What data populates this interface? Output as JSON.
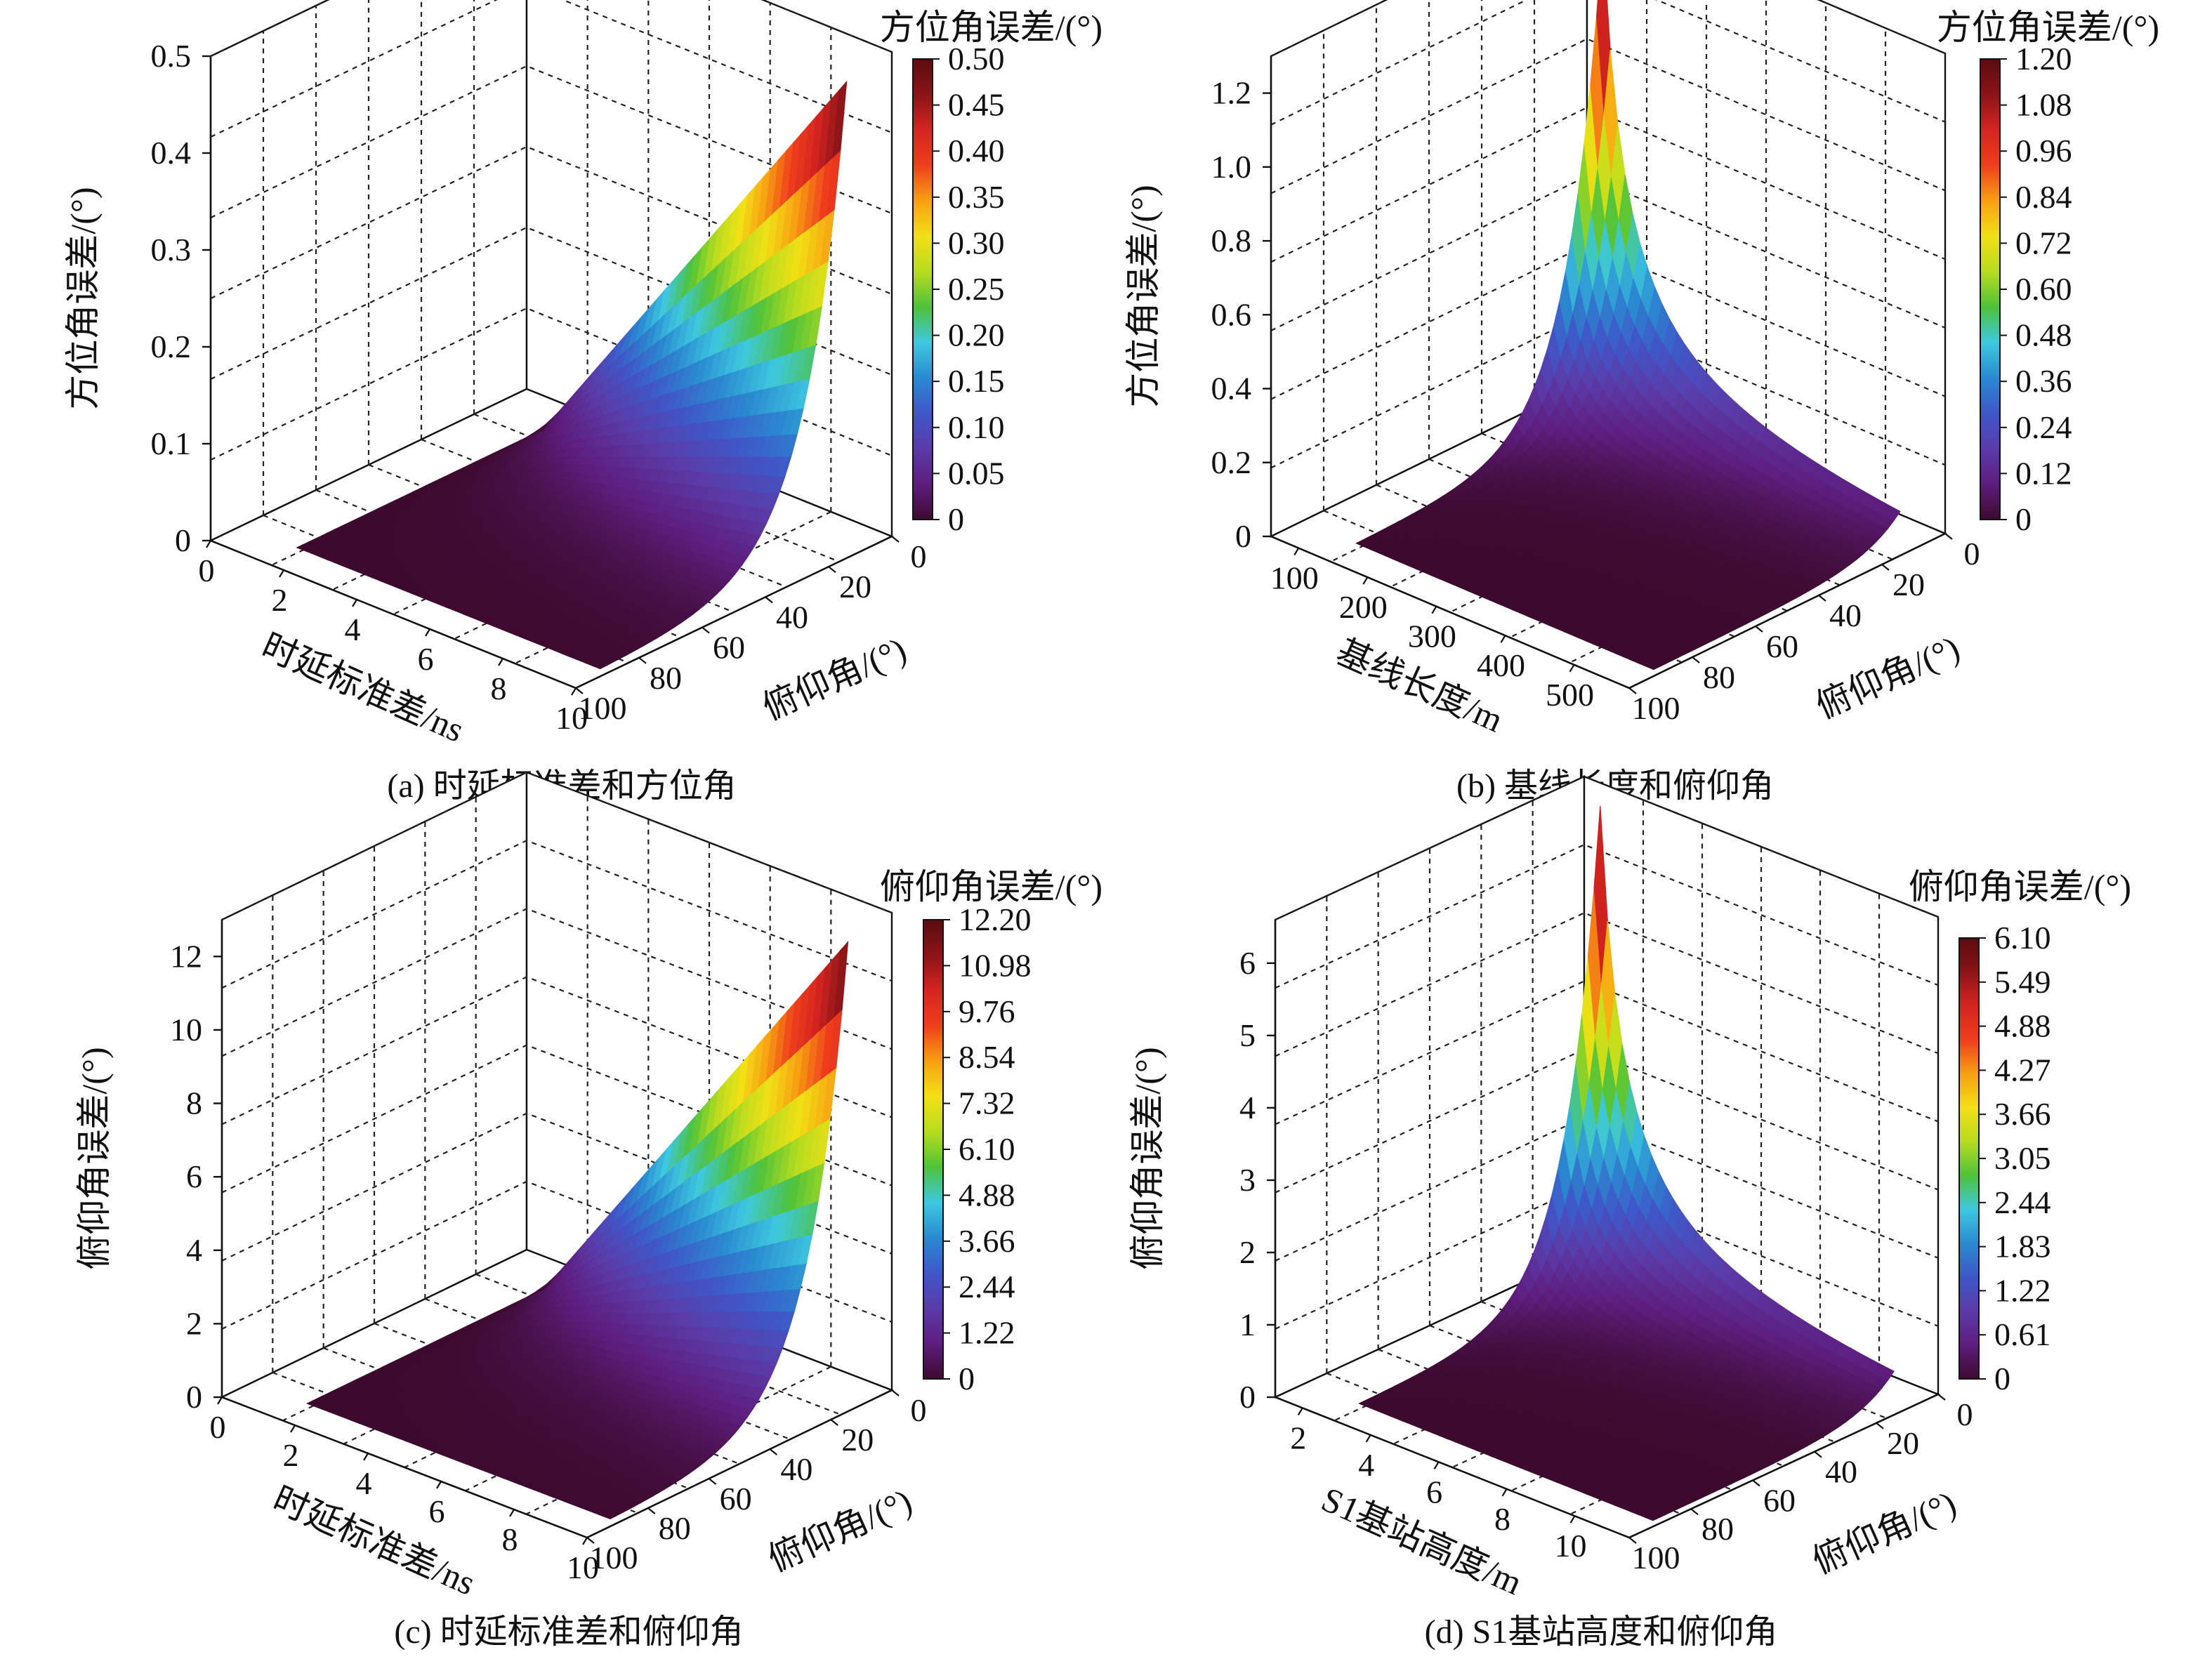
{
  "colorbar_colors": [
    "#3d0a2e",
    "#5e1d7e",
    "#5b3ba8",
    "#3f57c8",
    "#2a8ad0",
    "#3ec8e0",
    "#4ec23a",
    "#b8dc1e",
    "#f2e016",
    "#f7a012",
    "#ef3e1c",
    "#d62420",
    "#8a1418",
    "#5a0c10"
  ],
  "chart_data": [
    {
      "type": "surface",
      "caption": "(a) 时延标准差和方位角",
      "x_label": "时延标准差/ns",
      "x_ticks": [
        "0",
        "2",
        "4",
        "6",
        "8",
        "10"
      ],
      "y_label": "俯仰角/(°)",
      "y_ticks": [
        "0",
        "20",
        "40",
        "60",
        "80",
        "100"
      ],
      "z_label": "方位角误差/(°)",
      "z_ticks": [
        "0",
        "0.1",
        "0.2",
        "0.3",
        "0.4",
        "0.5"
      ],
      "z_range": [
        0,
        0.5
      ],
      "colorbar_title": "方位角误差/(°)",
      "colorbar_ticks": [
        "0",
        "0.05",
        "0.10",
        "0.15",
        "0.20",
        "0.25",
        "0.30",
        "0.35",
        "0.40",
        "0.45",
        "0.50"
      ],
      "peak_value": 0.5,
      "peak_location": "maximum delay std, elevation near 90°"
    },
    {
      "type": "surface",
      "caption": "(b) 基线长度和俯仰角",
      "x_label": "基线长度/m",
      "x_ticks": [
        "100",
        "200",
        "300",
        "400",
        "500"
      ],
      "y_label": "俯仰角/(°)",
      "y_ticks": [
        "0",
        "20",
        "40",
        "60",
        "80",
        "100"
      ],
      "z_label": "方位角误差/(°)",
      "z_ticks": [
        "0",
        "0.2",
        "0.4",
        "0.6",
        "0.8",
        "1.0",
        "1.2"
      ],
      "z_range": [
        0,
        1.3
      ],
      "colorbar_title": "方位角误差/(°)",
      "colorbar_ticks": [
        "0",
        "0.12",
        "0.24",
        "0.36",
        "0.48",
        "0.60",
        "0.72",
        "0.84",
        "0.96",
        "1.08",
        "1.20"
      ],
      "peak_value": 1.3,
      "peak_location": "shortest baseline, elevation near 90°"
    },
    {
      "type": "surface",
      "caption": "(c) 时延标准差和俯仰角",
      "x_label": "时延标准差/ns",
      "x_ticks": [
        "0",
        "2",
        "4",
        "6",
        "8",
        "10"
      ],
      "y_label": "俯仰角/(°)",
      "y_ticks": [
        "0",
        "20",
        "40",
        "60",
        "80",
        "100"
      ],
      "z_label": "俯仰角误差/(°)",
      "z_ticks": [
        "0",
        "2",
        "4",
        "6",
        "8",
        "10",
        "12"
      ],
      "z_range": [
        0,
        13
      ],
      "colorbar_title": "俯仰角误差/(°)",
      "colorbar_ticks": [
        "0",
        "1.22",
        "2.44",
        "3.66",
        "4.88",
        "6.10",
        "7.32",
        "8.54",
        "9.76",
        "10.98",
        "12.20"
      ],
      "peak_value": 12.2,
      "peak_location": "maximum delay std, elevation near 90°"
    },
    {
      "type": "surface",
      "caption": "(d) S1基站高度和俯仰角",
      "x_label": "S1基站高度/m",
      "x_ticks": [
        "2",
        "4",
        "6",
        "8",
        "10"
      ],
      "y_label": "俯仰角/(°)",
      "y_ticks": [
        "0",
        "20",
        "40",
        "60",
        "80",
        "100"
      ],
      "z_label": "俯仰角误差/(°)",
      "z_ticks": [
        "0",
        "1",
        "2",
        "3",
        "4",
        "5",
        "6"
      ],
      "z_range": [
        0,
        6.6
      ],
      "colorbar_title": "俯仰角误差/(°)",
      "colorbar_ticks": [
        "0",
        "0.61",
        "1.22",
        "1.83",
        "2.44",
        "3.05",
        "3.66",
        "4.27",
        "4.88",
        "5.49",
        "6.10"
      ],
      "peak_value": 6.6,
      "peak_location": "lowest station height, elevation near 90°"
    }
  ]
}
